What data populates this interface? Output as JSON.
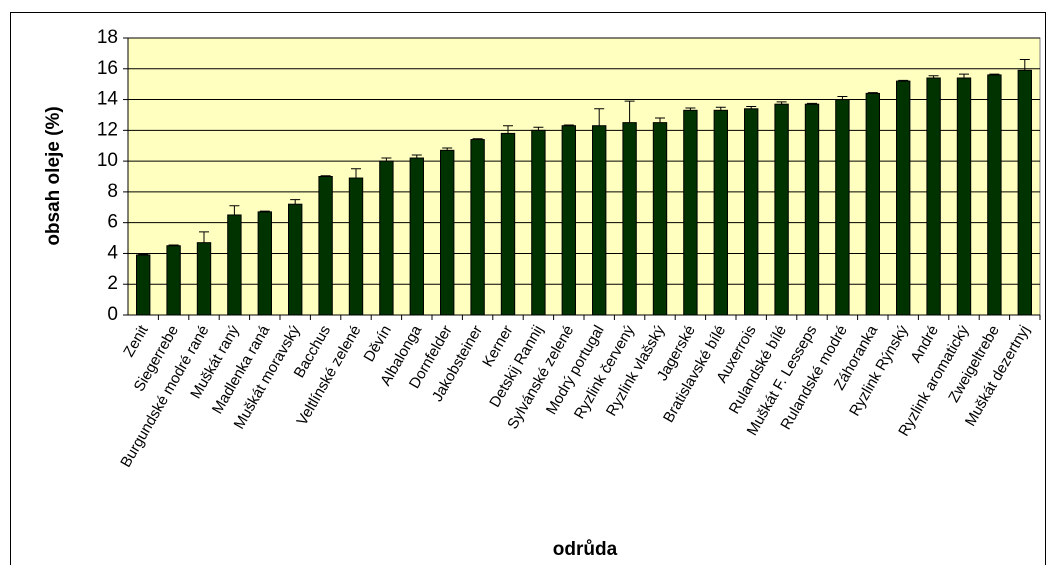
{
  "chart_data": {
    "type": "bar",
    "categories": [
      "Zenit",
      "Siegerrebe",
      "Burgundské modré rané",
      "Muškát raný",
      "Madlenka raná",
      "Muškát moravský",
      "Bacchus",
      "Veltlínské zelené",
      "Děvín",
      "Albalonga",
      "Dornfelder",
      "Jakobsteiner",
      "Kerner",
      "Detskij Rannij",
      "Sylvánské zelené",
      "Modrý portugal",
      "Ryzlink červený",
      "Ryzlink vlašský",
      "Jagerské",
      "Bratislavské bílé",
      "Auxerrois",
      "Rulandské bílé",
      "Muškát F. Lesseps",
      "Rulandské modré",
      "Záhoranka",
      "Ryzlink Rýnský",
      "André",
      "Ryzlink aromatický",
      "Zweigeltrebe",
      "Muškát dezertnyj"
    ],
    "values": [
      3.9,
      4.5,
      4.7,
      6.5,
      6.7,
      7.2,
      9.0,
      8.9,
      10.0,
      10.2,
      10.7,
      11.4,
      11.8,
      12.0,
      12.3,
      12.3,
      12.5,
      12.5,
      13.3,
      13.3,
      13.4,
      13.7,
      13.7,
      14.0,
      14.4,
      15.2,
      15.4,
      15.4,
      15.6,
      15.9
    ],
    "errors": [
      0.05,
      0.05,
      0.7,
      0.6,
      0.05,
      0.3,
      0.05,
      0.6,
      0.2,
      0.2,
      0.15,
      0.05,
      0.5,
      0.2,
      0.05,
      1.1,
      1.4,
      0.3,
      0.15,
      0.2,
      0.15,
      0.15,
      0.05,
      0.2,
      0.05,
      0.05,
      0.15,
      0.25,
      0.05,
      0.7
    ],
    "color": "#003300",
    "xlabel": "odrůda",
    "ylabel": "obsah oleje (%)",
    "ylim": [
      0,
      18
    ],
    "yticks": [
      0,
      2,
      4,
      6,
      8,
      10,
      12,
      14,
      16,
      18
    ],
    "grid": true
  }
}
